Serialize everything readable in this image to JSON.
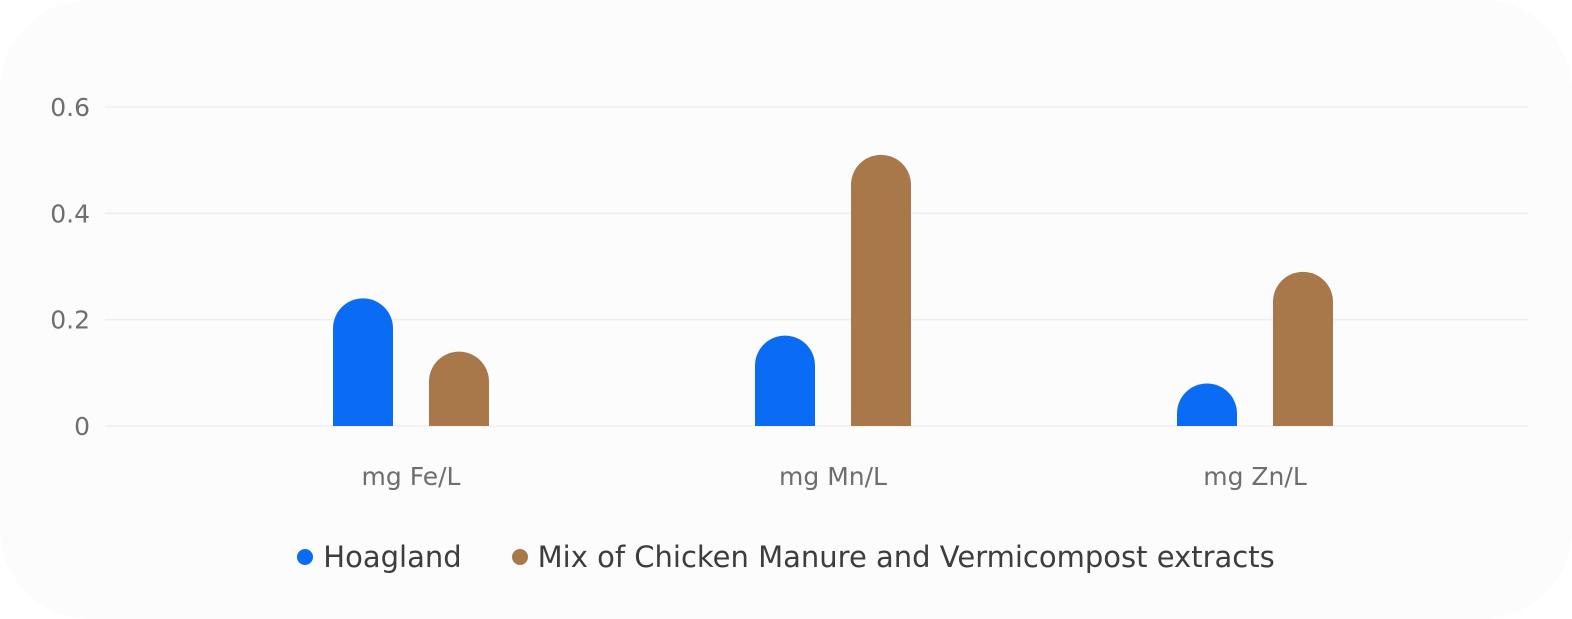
{
  "chart_data": {
    "type": "bar",
    "categories": [
      "mg Fe/L",
      "mg Mn/L",
      "mg Zn/L"
    ],
    "series": [
      {
        "name": "Hoagland",
        "values": [
          0.24,
          0.17,
          0.08
        ],
        "color": "#0a6cf5"
      },
      {
        "name": "Mix of Chicken Manure and Vermicompost extracts",
        "values": [
          0.14,
          0.51,
          0.29
        ],
        "color": "#a8784b"
      }
    ],
    "yticks": [
      0,
      0.2,
      0.4,
      0.6
    ],
    "ytick_labels": [
      "0",
      "0.2",
      "0.4",
      "0.6"
    ],
    "ylim": [
      0,
      0.6
    ],
    "grid": true,
    "legend_position": "bottom-center"
  }
}
